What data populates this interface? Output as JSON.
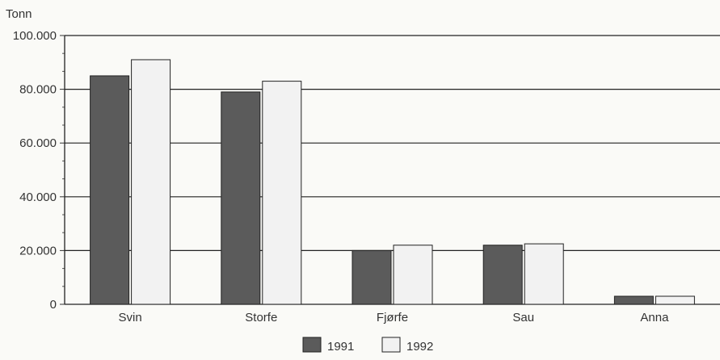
{
  "chart_data": {
    "type": "bar",
    "ylabel": "Tonn",
    "categories": [
      "Svin",
      "Storfe",
      "Fjørfe",
      "Sau",
      "Anna"
    ],
    "series": [
      {
        "name": "1991",
        "values": [
          85000,
          79000,
          20000,
          22000,
          3000
        ]
      },
      {
        "name": "1992",
        "values": [
          91000,
          83000,
          22000,
          22500,
          3000
        ]
      }
    ],
    "yticks": [
      "0",
      "20.000",
      "40.000",
      "60.000",
      "80.000",
      "100.000"
    ],
    "ytick_values": [
      0,
      20000,
      40000,
      60000,
      80000,
      100000
    ],
    "ylim": [
      0,
      100000
    ],
    "grid": true,
    "legend_position": "bottom",
    "colors": {
      "1991": "#5b5b5b",
      "1992": "#f2f2f2"
    }
  }
}
